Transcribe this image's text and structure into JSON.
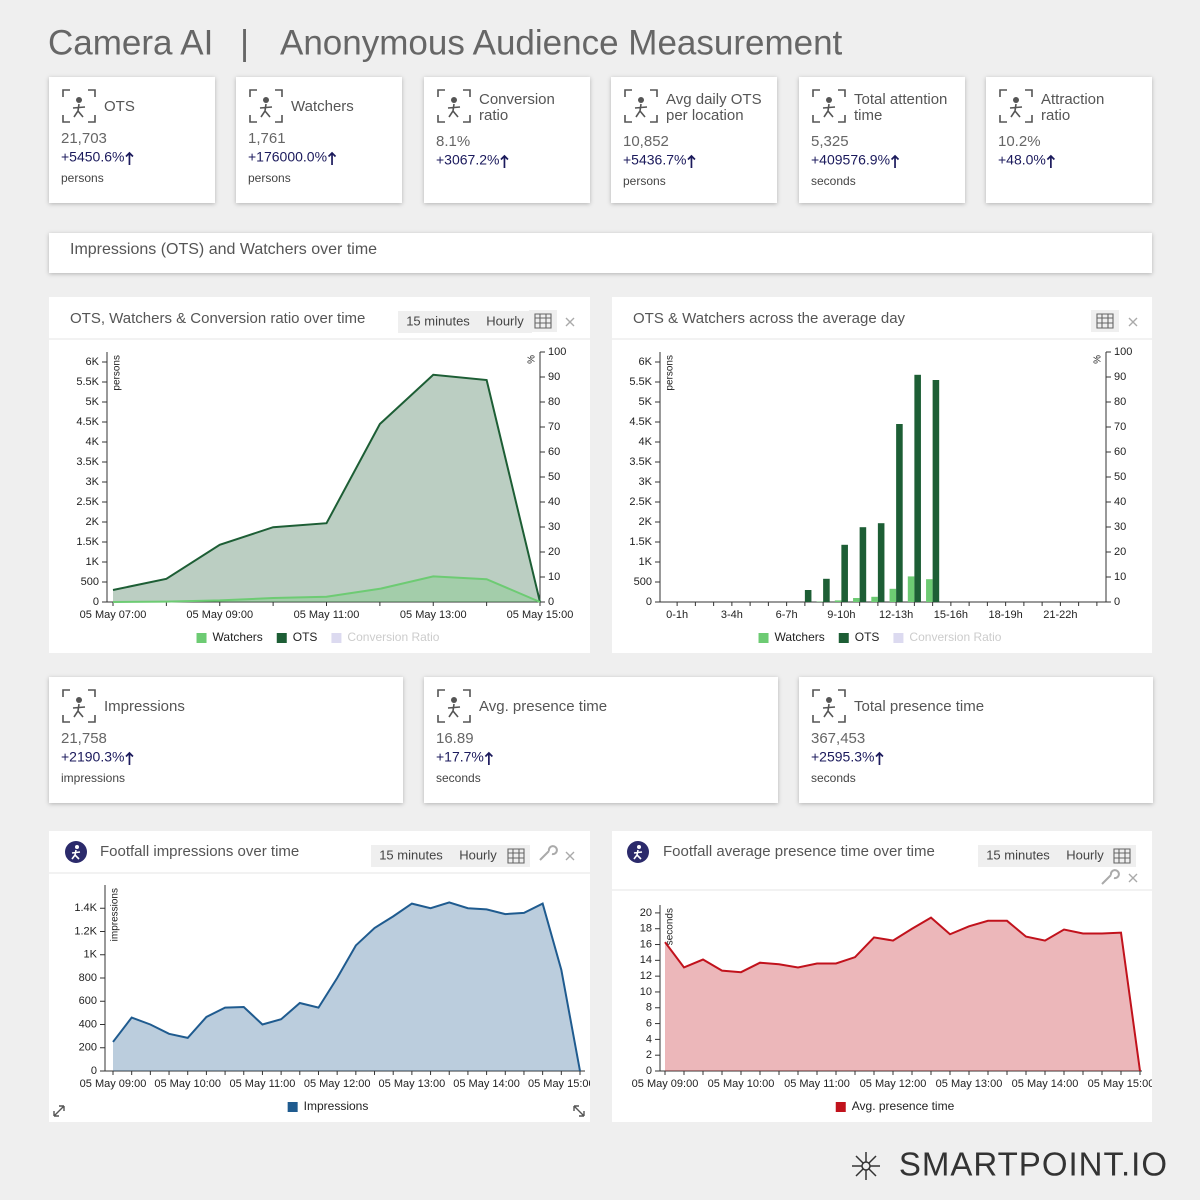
{
  "header": {
    "title": "Camera AI",
    "separator": "|",
    "subtitle": "Anonymous Audience Measurement"
  },
  "kpis_top": [
    {
      "label_lines": [
        "OTS"
      ],
      "value": "21,703",
      "change": "+5450.6%",
      "unit": "persons"
    },
    {
      "label_lines": [
        "Watchers"
      ],
      "value": "1,761",
      "change": "+176000.0%",
      "unit": "persons"
    },
    {
      "label_lines": [
        "Conversion",
        "ratio"
      ],
      "value": "8.1%",
      "change": "+3067.2%"
    },
    {
      "label_lines": [
        "Avg daily OTS",
        "per location"
      ],
      "value": "10,852",
      "change": "+5436.7%",
      "unit": "persons"
    },
    {
      "label_lines": [
        "Total attention",
        "time"
      ],
      "value": "5,325",
      "change": "+409576.9%",
      "unit": "seconds"
    },
    {
      "label_lines": [
        "Attraction",
        "ratio"
      ],
      "value": "10.2%",
      "change": "+48.0%"
    }
  ],
  "section_title": "Impressions (OTS) and Watchers over time",
  "kpis_bottom": [
    {
      "label_lines": [
        "Impressions"
      ],
      "value": "21,758",
      "change": "+2190.3%",
      "unit": "impressions"
    },
    {
      "label_lines": [
        "Avg. presence time"
      ],
      "value": "16.89",
      "change": "+17.7%",
      "unit": "seconds"
    },
    {
      "label_lines": [
        "Total presence time"
      ],
      "value": "367,453",
      "change": "+2595.3%",
      "unit": "seconds"
    }
  ],
  "controls": {
    "interval": "15 minutes",
    "hourly": "Hourly"
  },
  "chart_data": [
    {
      "type": "area",
      "title": "OTS, Watchers & Conversion ratio over time",
      "categories": [
        "05 May 07:00",
        null,
        "05 May 09:00",
        null,
        "05 May 11:00",
        null,
        "05 May 13:00",
        null,
        "05 May 15:00"
      ],
      "series": [
        {
          "name": "Watchers",
          "color": "#6dcb73",
          "values": [
            0,
            10,
            40,
            100,
            130,
            330,
            640,
            570,
            0
          ]
        },
        {
          "name": "OTS",
          "color": "#1d5e35",
          "values": [
            300,
            580,
            1430,
            1870,
            1970,
            4450,
            5680,
            5550,
            0
          ]
        },
        {
          "name": "Conversion Ratio",
          "color": "#dcdaf0",
          "axis": "y2",
          "visible": false
        }
      ],
      "ylabel": "persons",
      "y2label": "%",
      "ylim": [
        0,
        6250
      ],
      "yticks": [
        0,
        500,
        {
          "value": 1000,
          "label": "1K"
        },
        {
          "value": 1500,
          "label": "1.5K"
        },
        {
          "value": 2000,
          "label": "2K"
        },
        {
          "value": 2500,
          "label": "2.5K"
        },
        {
          "value": 3000,
          "label": "3K"
        },
        {
          "value": 3500,
          "label": "3.5K"
        },
        {
          "value": 4000,
          "label": "4K"
        },
        {
          "value": 4500,
          "label": "4.5K"
        },
        {
          "value": 5000,
          "label": "5K"
        },
        {
          "value": 5500,
          "label": "5.5K"
        },
        {
          "value": 6000,
          "label": "6K"
        }
      ],
      "y2lim": [
        0,
        100
      ],
      "y2ticks": [
        0,
        10,
        20,
        30,
        40,
        50,
        60,
        70,
        80,
        90,
        100
      ]
    },
    {
      "type": "bar",
      "title": "OTS & Watchers across the average day",
      "categories": [
        "0-1h",
        null,
        null,
        "3-4h",
        null,
        null,
        "6-7h",
        null,
        null,
        "9-10h",
        null,
        null,
        "12-13h",
        null,
        null,
        "15-16h",
        null,
        null,
        "18-19h",
        null,
        null,
        "21-22h",
        null,
        null
      ],
      "series": [
        {
          "name": "Watchers",
          "color": "#6dcb73",
          "values": [
            0,
            0,
            0,
            0,
            0,
            0,
            0,
            0,
            10,
            40,
            100,
            130,
            330,
            640,
            570,
            0,
            0,
            0,
            0,
            0,
            0,
            0,
            0,
            0
          ]
        },
        {
          "name": "OTS",
          "color": "#1d5e35",
          "values": [
            0,
            0,
            0,
            0,
            0,
            0,
            0,
            300,
            580,
            1430,
            1870,
            1970,
            4450,
            5680,
            5550,
            0,
            0,
            0,
            0,
            0,
            0,
            0,
            0,
            0
          ]
        },
        {
          "name": "Conversion Ratio",
          "color": "#dcdaf0",
          "axis": "y2",
          "visible": false
        }
      ],
      "ylabel": "persons",
      "y2label": "%",
      "ylim": [
        0,
        6250
      ],
      "yticks": [
        0,
        500,
        {
          "value": 1000,
          "label": "1K"
        },
        {
          "value": 1500,
          "label": "1.5K"
        },
        {
          "value": 2000,
          "label": "2K"
        },
        {
          "value": 2500,
          "label": "2.5K"
        },
        {
          "value": 3000,
          "label": "3K"
        },
        {
          "value": 3500,
          "label": "3.5K"
        },
        {
          "value": 4000,
          "label": "4K"
        },
        {
          "value": 4500,
          "label": "4.5K"
        },
        {
          "value": 5000,
          "label": "5K"
        },
        {
          "value": 5500,
          "label": "5.5K"
        },
        {
          "value": 6000,
          "label": "6K"
        }
      ],
      "y2lim": [
        0,
        100
      ],
      "y2ticks": [
        0,
        10,
        20,
        30,
        40,
        50,
        60,
        70,
        80,
        90,
        100
      ]
    },
    {
      "type": "area",
      "title": "Footfall impressions over time",
      "categories": [
        "05 May 09:00",
        null,
        null,
        null,
        "05 May 10:00",
        null,
        null,
        null,
        "05 May 11:00",
        null,
        null,
        null,
        "05 May 12:00",
        null,
        null,
        null,
        "05 May 13:00",
        null,
        null,
        null,
        "05 May 14:00",
        null,
        null,
        null,
        "05 May 15:00",
        null
      ],
      "series": [
        {
          "name": "Impressions",
          "color": "#1f5b8f",
          "values": [
            250,
            460,
            400,
            320,
            285,
            465,
            545,
            550,
            400,
            445,
            585,
            545,
            800,
            1080,
            1230,
            1330,
            1440,
            1400,
            1450,
            1400,
            1390,
            1350,
            1360,
            1440,
            870,
            0
          ]
        }
      ],
      "ylabel": "impressions",
      "ylim": [
        0,
        1600
      ],
      "yticks": [
        0,
        200,
        400,
        600,
        800,
        {
          "value": 1000,
          "label": "1K"
        },
        {
          "value": 1200,
          "label": "1.2K"
        },
        {
          "value": 1400,
          "label": "1.4K"
        }
      ]
    },
    {
      "type": "area",
      "title": "Footfall average presence time over time",
      "categories": [
        "05 May 09:00",
        null,
        null,
        null,
        "05 May 10:00",
        null,
        null,
        null,
        "05 May 11:00",
        null,
        null,
        null,
        "05 May 12:00",
        null,
        null,
        null,
        "05 May 13:00",
        null,
        null,
        null,
        "05 May 14:00",
        null,
        null,
        null,
        "05 May 15:00",
        null
      ],
      "series": [
        {
          "name": "Avg. presence time",
          "color": "#c1121c",
          "values": [
            16.3,
            13.1,
            14.1,
            12.7,
            12.5,
            13.7,
            13.5,
            13.1,
            13.6,
            13.6,
            14.4,
            16.9,
            16.5,
            18,
            19.4,
            17.3,
            18.3,
            19,
            19,
            17,
            16.5,
            17.9,
            17.4,
            17.4,
            17.5,
            0
          ]
        }
      ],
      "ylabel": "seconds",
      "ylim": [
        0,
        21
      ],
      "yticks": [
        0,
        2,
        4,
        6,
        8,
        10,
        12,
        14,
        16,
        18,
        20
      ]
    }
  ],
  "footer": {
    "brand": "SMARTPOINT.IO"
  }
}
